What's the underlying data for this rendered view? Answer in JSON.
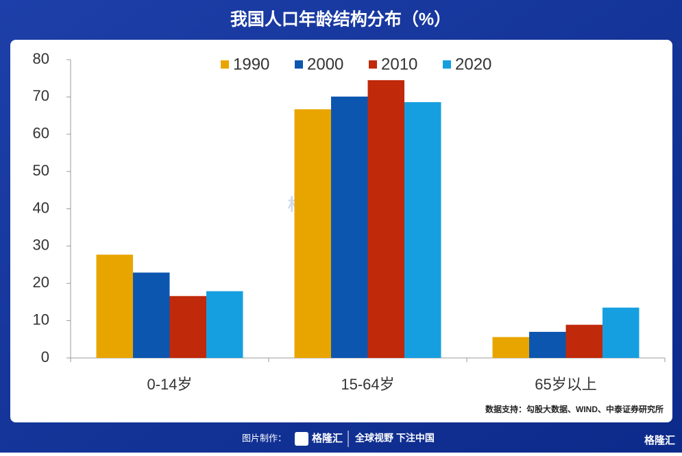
{
  "chart_data": {
    "type": "bar",
    "title": "我国人口年龄结构分布（%）",
    "categories": [
      "0-14岁",
      "15-64岁",
      "65岁以上"
    ],
    "series": [
      {
        "name": "1990",
        "color": "#e8a500",
        "values": [
          27.7,
          66.7,
          5.6
        ]
      },
      {
        "name": "2000",
        "color": "#0d56b0",
        "values": [
          22.9,
          70.1,
          7.0
        ]
      },
      {
        "name": "2010",
        "color": "#c0290a",
        "values": [
          16.6,
          74.5,
          8.9
        ]
      },
      {
        "name": "2020",
        "color": "#169fe0",
        "values": [
          17.9,
          68.6,
          13.5
        ]
      }
    ],
    "ylim": [
      0,
      80
    ],
    "yticks": [
      0,
      10,
      20,
      30,
      40,
      50,
      60,
      70,
      80
    ],
    "legend": "top",
    "source": "数据支持：勾股大数据、WIND、中泰证券研究所"
  },
  "footer": {
    "made_by": "图片制作：",
    "brand": "格隆汇",
    "slogan": "全球视野 下注中国",
    "corner_brand": "格隆汇"
  }
}
